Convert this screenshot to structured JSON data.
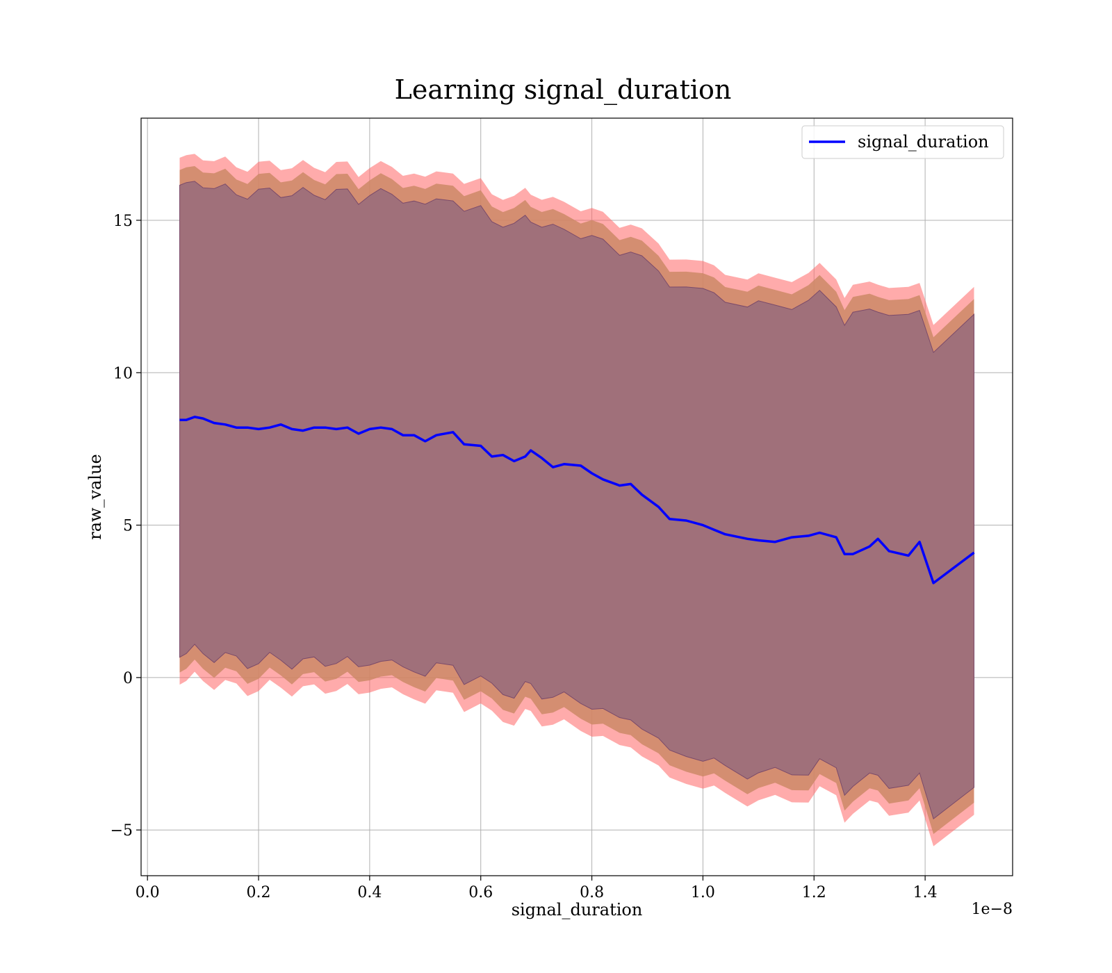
{
  "chart_data": {
    "type": "line",
    "title": "Learning signal_duration",
    "xlabel": "signal_duration",
    "ylabel": "raw_value",
    "x_offset_text": "1e−8",
    "xlim": [
      -0.0115,
      1.5575
    ],
    "ylim": [
      -6.5,
      18.35
    ],
    "x_ticks": [
      0.0,
      0.2,
      0.4,
      0.6,
      0.8,
      1.0,
      1.2,
      1.4
    ],
    "x_tick_labels": [
      "0.0",
      "0.2",
      "0.4",
      "0.6",
      "0.8",
      "1.0",
      "1.2",
      "1.4"
    ],
    "y_ticks": [
      -5,
      0,
      5,
      10,
      15
    ],
    "y_tick_labels": [
      "−5",
      "0",
      "5",
      "10",
      "15"
    ],
    "grid": true,
    "legend_position": "top-right",
    "legend": [
      "signal_duration"
    ],
    "colors": {
      "line": "#0000ff",
      "band_outer": "#ff6666",
      "band_middle": "#cc8866",
      "band_inner": "#a0707a",
      "band_inner_edge": "#7a4a6a",
      "grid": "#b0b0b0"
    },
    "series": [
      {
        "name": "signal_duration",
        "x": [
          0.058,
          0.07,
          0.085,
          0.1,
          0.12,
          0.14,
          0.16,
          0.18,
          0.2,
          0.22,
          0.24,
          0.26,
          0.28,
          0.3,
          0.32,
          0.34,
          0.36,
          0.38,
          0.4,
          0.42,
          0.44,
          0.46,
          0.48,
          0.5,
          0.52,
          0.55,
          0.57,
          0.6,
          0.62,
          0.64,
          0.66,
          0.68,
          0.69,
          0.71,
          0.73,
          0.75,
          0.78,
          0.8,
          0.82,
          0.85,
          0.87,
          0.89,
          0.92,
          0.94,
          0.97,
          1.0,
          1.02,
          1.04,
          1.08,
          1.1,
          1.13,
          1.16,
          1.19,
          1.21,
          1.24,
          1.255,
          1.27,
          1.3,
          1.315,
          1.335,
          1.37,
          1.39,
          1.415,
          1.488
        ],
        "mean": [
          8.45,
          8.45,
          8.55,
          8.5,
          8.35,
          8.3,
          8.2,
          8.2,
          8.15,
          8.2,
          8.3,
          8.15,
          8.1,
          8.2,
          8.2,
          8.15,
          8.2,
          8.0,
          8.15,
          8.2,
          8.15,
          7.95,
          7.95,
          7.75,
          7.95,
          8.05,
          7.65,
          7.6,
          7.25,
          7.3,
          7.1,
          7.25,
          7.45,
          7.2,
          6.9,
          7.0,
          6.95,
          6.7,
          6.5,
          6.3,
          6.35,
          6.0,
          5.6,
          5.2,
          5.15,
          5.0,
          4.85,
          4.7,
          4.55,
          4.5,
          4.45,
          4.6,
          4.65,
          4.75,
          4.6,
          4.05,
          4.05,
          4.3,
          4.55,
          4.15,
          4.0,
          4.45,
          3.1,
          4.1
        ]
      }
    ],
    "bands": [
      {
        "half_width_low": 8.55,
        "half_width_high": 8.6
      },
      {
        "half_width_low": 8.15,
        "half_width_high": 8.2
      },
      {
        "half_width_low": 7.65,
        "half_width_high": 7.7
      }
    ]
  }
}
